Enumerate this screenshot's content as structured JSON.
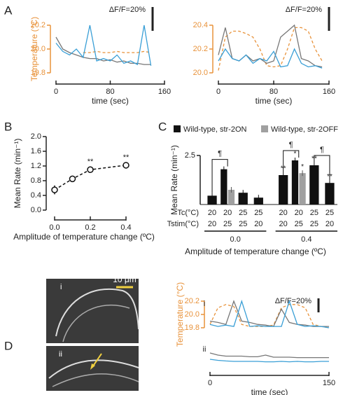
{
  "panels": [
    "A",
    "B",
    "C",
    "D"
  ],
  "images": {
    "labels": [
      "i",
      "ii"
    ],
    "scale_bar": "10 μm"
  },
  "chart_data": [
    {
      "type": "line",
      "ylabel": "Temperature (°C)",
      "xlabel": "time (sec)",
      "scale_bar": "ΔF/F=20%",
      "axis_color": "#e8923a",
      "x": [
        0,
        10,
        20,
        30,
        40,
        50,
        60,
        70,
        80,
        90,
        100,
        110,
        120,
        130,
        140
      ],
      "xlim": [
        0,
        160
      ],
      "xticks": [
        0,
        80,
        160
      ],
      "ylim": [
        19.8,
        20.2
      ],
      "yticks": [
        19.8,
        {
          "value": 20.0,
          "label": "20.0"
        },
        20.2
      ],
      "series": [
        {
          "color": "#e8923a",
          "dashed": true,
          "values": [
            null,
            null,
            null,
            null,
            19.97,
            19.97,
            19.98,
            19.97,
            19.97,
            19.98,
            19.97,
            19.97,
            19.97,
            19.98,
            19.97
          ]
        },
        {
          "color": "#777777",
          "values": [
            20.1,
            20.0,
            19.97,
            19.95,
            19.93,
            19.92,
            19.92,
            19.9,
            19.91,
            19.89,
            19.9,
            19.88,
            19.88,
            19.87,
            19.87
          ]
        },
        {
          "color": "#3a9fd6",
          "values": [
            20.05,
            19.98,
            19.95,
            20.0,
            19.93,
            20.2,
            19.9,
            19.92,
            19.9,
            19.95,
            19.88,
            19.9,
            19.87,
            20.2,
            19.86
          ]
        }
      ]
    },
    {
      "type": "line",
      "xlabel": "time (sec)",
      "scale_bar": "ΔF/F=20%",
      "axis_color": "#e8923a",
      "x": [
        0,
        10,
        20,
        30,
        40,
        50,
        60,
        70,
        80,
        90,
        100,
        110,
        120,
        130,
        140,
        150
      ],
      "xlim": [
        0,
        160
      ],
      "xticks": [
        0,
        80,
        160
      ],
      "ylim": [
        20.0,
        20.4
      ],
      "yticks": [
        {
          "value": 20.0,
          "label": "20.0"
        },
        20.2,
        20.4
      ],
      "series": [
        {
          "color": "#e8923a",
          "dashed": true,
          "values": [
            20.02,
            20.3,
            20.35,
            20.35,
            20.33,
            20.3,
            20.2,
            20.06,
            20.05,
            20.06,
            20.2,
            20.38,
            20.38,
            20.35,
            20.2,
            20.1
          ]
        },
        {
          "color": "#777777",
          "values": [
            20.15,
            20.38,
            20.12,
            20.1,
            20.15,
            20.1,
            20.12,
            20.08,
            20.1,
            20.3,
            20.35,
            20.4,
            20.12,
            20.1,
            20.06,
            20.05
          ]
        },
        {
          "color": "#3a9fd6",
          "values": [
            20.1,
            20.2,
            20.12,
            20.1,
            20.15,
            20.08,
            20.12,
            20.1,
            20.18,
            20.05,
            20.06,
            20.2,
            20.08,
            20.05,
            20.06,
            20.04
          ]
        }
      ]
    },
    {
      "type": "errorline",
      "ylabel": "Mean Rate (min⁻¹)",
      "xlabel": "Amplitude of temperature change (ºC)",
      "x": [
        0,
        0.1,
        0.2,
        0.4
      ],
      "values": [
        0.55,
        0.85,
        1.1,
        1.22
      ],
      "errors": [
        0.12,
        0.08,
        0.06,
        0.05
      ],
      "significance": [
        null,
        null,
        "**",
        "**"
      ],
      "xlim": [
        0,
        0.4
      ],
      "xticks": [
        {
          "value": 0,
          "label": "0.0"
        },
        0.2,
        0.4
      ],
      "ylim": [
        0,
        2.0
      ],
      "yticks": [
        {
          "value": 0,
          "label": "0.0"
        },
        0.4,
        0.8,
        1.2,
        1.6,
        {
          "value": 2.0,
          "label": "2.0"
        }
      ]
    },
    {
      "type": "bar",
      "ylabel": "Mean Rate (min⁻¹)",
      "xlabel": "Amplitude of temperature change (ºC)",
      "row_labels": [
        "Tc(°C)",
        "Tstim(°C)"
      ],
      "tc": [
        20,
        20,
        25,
        25,
        20,
        20,
        25,
        25
      ],
      "tstim": [
        20,
        25,
        25,
        20,
        20,
        25,
        25,
        20
      ],
      "groups": [
        "0.0",
        "0.4"
      ],
      "bracket_labels": [
        "¶",
        null,
        null,
        null,
        "¶",
        null,
        "¶",
        null
      ],
      "ylim": [
        0,
        2.5
      ],
      "yticks": [
        2.5
      ],
      "series": [
        {
          "name": "Wild-type, str-2ON",
          "color": "#111111",
          "values": [
            0.45,
            1.8,
            0.6,
            0.35,
            1.5,
            2.25,
            2.0,
            1.1
          ],
          "marks": [
            null,
            null,
            null,
            null,
            "**",
            "*",
            "**",
            "**"
          ]
        },
        {
          "name": "Wild-type, str-2OFF",
          "color": "#a0a0a0",
          "values": [
            null,
            0.75,
            null,
            null,
            null,
            1.6,
            null,
            null
          ],
          "marks": [
            null,
            null,
            null,
            null,
            null,
            "*",
            null,
            null
          ]
        }
      ]
    },
    {
      "type": "line",
      "ylabel": "Temperature (°C)",
      "scale_bar": "ΔF/F=20%",
      "label": "i",
      "axis_color": "#e8923a",
      "x": [
        0,
        10,
        20,
        30,
        40,
        50,
        60,
        70,
        80,
        90,
        100,
        110,
        120,
        130,
        140,
        150
      ],
      "xlim": [
        0,
        150
      ],
      "ylim": [
        19.8,
        20.2
      ],
      "yticks": [
        19.8,
        {
          "value": 20.0,
          "label": "20.0"
        },
        20.2
      ],
      "series": [
        {
          "color": "#e8923a",
          "dashed": true,
          "values": [
            19.85,
            20.1,
            20.15,
            20.12,
            19.85,
            19.82,
            19.82,
            19.82,
            19.84,
            20.1,
            20.15,
            20.15,
            20.1,
            19.85,
            19.82,
            19.8
          ]
        },
        {
          "color": "#777777",
          "values": [
            19.9,
            19.88,
            19.85,
            20.2,
            19.9,
            19.88,
            19.85,
            19.84,
            19.82,
            20.08,
            19.88,
            19.85,
            19.84,
            19.82,
            19.82,
            19.82
          ]
        },
        {
          "color": "#3a9fd6",
          "values": [
            19.85,
            19.82,
            19.84,
            19.82,
            20.2,
            19.82,
            19.83,
            19.82,
            19.82,
            19.82,
            20.2,
            19.85,
            19.82,
            19.83,
            19.82,
            19.8
          ]
        }
      ]
    },
    {
      "type": "line",
      "xlabel": "time (sec)",
      "label": "ii",
      "x": [
        0,
        10,
        20,
        30,
        40,
        50,
        60,
        70,
        80,
        90,
        100,
        110,
        120,
        130,
        140,
        150
      ],
      "xlim": [
        0,
        150
      ],
      "xticks": [
        0,
        150
      ],
      "ylim": [
        0,
        1
      ],
      "series": [
        {
          "color": "#777777",
          "values": [
            0.7,
            0.6,
            0.55,
            0.55,
            0.55,
            0.52,
            0.52,
            0.6,
            0.5,
            0.5,
            0.5,
            0.48,
            0.48,
            0.48,
            0.48,
            0.48
          ]
        },
        {
          "color": "#3a9fd6",
          "values": [
            0.4,
            0.35,
            0.32,
            0.3,
            0.3,
            0.3,
            0.3,
            0.28,
            0.28,
            0.3,
            0.28,
            0.3,
            0.28,
            0.28,
            0.3,
            0.3
          ]
        }
      ]
    }
  ]
}
